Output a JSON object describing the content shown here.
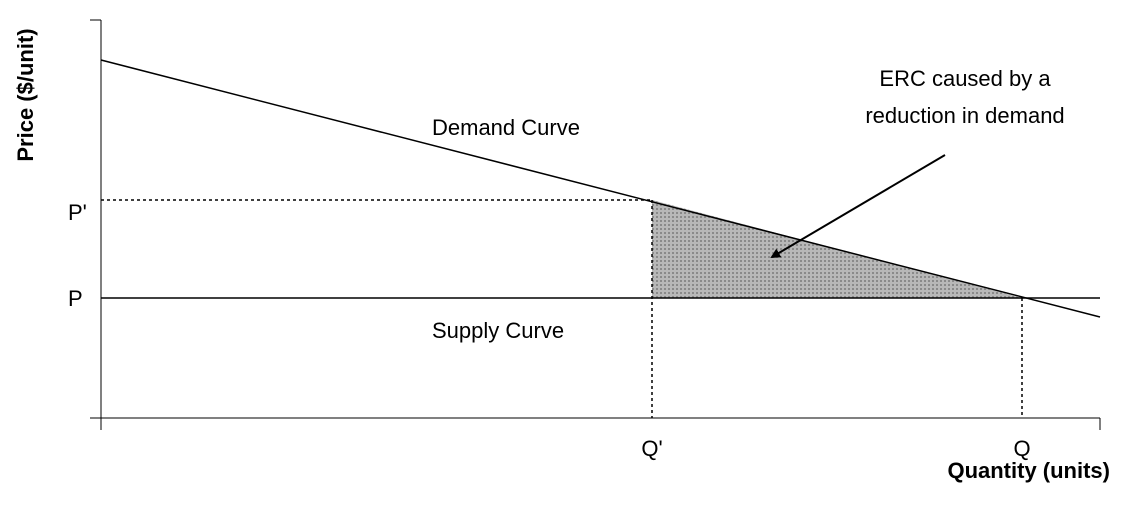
{
  "axes": {
    "y_label": "Price ($/unit)",
    "x_label": "Quantity (units)"
  },
  "curves": [
    {
      "label": "Demand Curve"
    },
    {
      "label": "Supply Curve"
    }
  ],
  "y_ticks": [
    "P'",
    "P"
  ],
  "x_ticks": [
    "Q'",
    "Q"
  ],
  "annotation": [
    "ERC caused by a",
    "reduction in demand"
  ]
}
